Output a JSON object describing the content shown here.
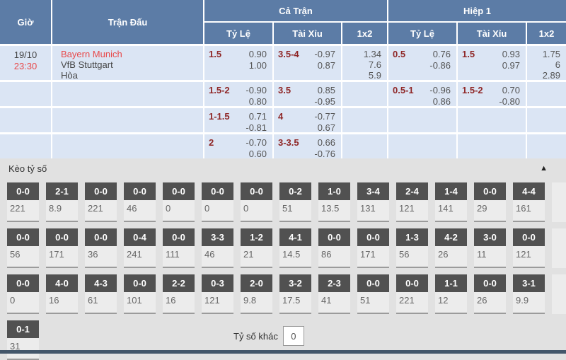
{
  "header": {
    "col_time": "Giờ",
    "col_match": "Trận Đấu",
    "group_full": "Cả Trận",
    "group_half": "Hiệp 1",
    "sub_handicap": "Tỷ Lệ",
    "sub_overunder": "Tài Xỉu",
    "sub_1x2": "1x2"
  },
  "match": {
    "date": "19/10",
    "time": "23:30",
    "home": "Bayern Munich",
    "away": "VfB Stuttgart",
    "draw": "Hòa"
  },
  "odds_rows": [
    {
      "ft_hdp_line": "1.5",
      "ft_hdp_odds": [
        "0.90",
        "1.00"
      ],
      "ft_ou_line": "3.5-4",
      "ft_ou_odds": [
        "-0.97",
        "0.87"
      ],
      "ft_1x2": [
        "1.34",
        "7.6",
        "5.9"
      ],
      "h1_hdp_line": "0.5",
      "h1_hdp_odds": [
        "0.76",
        "-0.86"
      ],
      "h1_ou_line": "1.5",
      "h1_ou_odds": [
        "0.93",
        "0.97"
      ],
      "h1_1x2": [
        "1.75",
        "6",
        "2.89"
      ]
    },
    {
      "ft_hdp_line": "1.5-2",
      "ft_hdp_odds": [
        "-0.90",
        "0.80"
      ],
      "ft_ou_line": "3.5",
      "ft_ou_odds": [
        "0.85",
        "-0.95"
      ],
      "ft_1x2": [],
      "h1_hdp_line": "0.5-1",
      "h1_hdp_odds": [
        "-0.96",
        "0.86"
      ],
      "h1_ou_line": "1.5-2",
      "h1_ou_odds": [
        "0.70",
        "-0.80"
      ],
      "h1_1x2": []
    },
    {
      "ft_hdp_line": "1-1.5",
      "ft_hdp_odds": [
        "0.71",
        "-0.81"
      ],
      "ft_ou_line": "4",
      "ft_ou_odds": [
        "-0.77",
        "0.67"
      ],
      "ft_1x2": [],
      "h1_hdp_line": "",
      "h1_hdp_odds": [],
      "h1_ou_line": "",
      "h1_ou_odds": [],
      "h1_1x2": []
    },
    {
      "ft_hdp_line": "2",
      "ft_hdp_odds": [
        "-0.70",
        "0.60"
      ],
      "ft_ou_line": "3-3.5",
      "ft_ou_odds": [
        "0.66",
        "-0.76"
      ],
      "ft_1x2": [],
      "h1_hdp_line": "",
      "h1_hdp_odds": [],
      "h1_ou_line": "",
      "h1_ou_odds": [],
      "h1_1x2": []
    }
  ],
  "score_section": {
    "title": "Kèo tỷ số",
    "collapse_glyph": "▲",
    "other_label": "Tỷ số khác",
    "other_value": "0",
    "rows": [
      [
        {
          "score": "0-0",
          "odds": "221"
        },
        {
          "score": "2-1",
          "odds": "8.9"
        },
        {
          "score": "0-0",
          "odds": "221"
        },
        {
          "score": "0-0",
          "odds": "46"
        },
        {
          "score": "0-0",
          "odds": "0"
        },
        {
          "score": "0-0",
          "odds": "0"
        },
        {
          "score": "0-0",
          "odds": "0"
        },
        {
          "score": "0-2",
          "odds": "51"
        },
        {
          "score": "1-0",
          "odds": "13.5"
        },
        {
          "score": "3-4",
          "odds": "131"
        },
        {
          "score": "2-4",
          "odds": "121"
        },
        {
          "score": "1-4",
          "odds": "141"
        },
        {
          "score": "0-0",
          "odds": "29"
        },
        {
          "score": "4-4",
          "odds": "161"
        }
      ],
      [
        {
          "score": "0-0",
          "odds": "56"
        },
        {
          "score": "0-0",
          "odds": "171"
        },
        {
          "score": "0-0",
          "odds": "36"
        },
        {
          "score": "0-4",
          "odds": "241"
        },
        {
          "score": "0-0",
          "odds": "111"
        },
        {
          "score": "3-3",
          "odds": "46"
        },
        {
          "score": "1-2",
          "odds": "21"
        },
        {
          "score": "4-1",
          "odds": "14.5"
        },
        {
          "score": "0-0",
          "odds": "86"
        },
        {
          "score": "0-0",
          "odds": "171"
        },
        {
          "score": "1-3",
          "odds": "56"
        },
        {
          "score": "4-2",
          "odds": "26"
        },
        {
          "score": "3-0",
          "odds": "11"
        },
        {
          "score": "0-0",
          "odds": "121"
        }
      ],
      [
        {
          "score": "0-0",
          "odds": "0"
        },
        {
          "score": "4-0",
          "odds": "16"
        },
        {
          "score": "4-3",
          "odds": "61"
        },
        {
          "score": "0-0",
          "odds": "101"
        },
        {
          "score": "2-2",
          "odds": "16"
        },
        {
          "score": "0-3",
          "odds": "121"
        },
        {
          "score": "2-0",
          "odds": "9.8"
        },
        {
          "score": "3-2",
          "odds": "17.5"
        },
        {
          "score": "2-3",
          "odds": "41"
        },
        {
          "score": "0-0",
          "odds": "51"
        },
        {
          "score": "0-0",
          "odds": "221"
        },
        {
          "score": "1-1",
          "odds": "12"
        },
        {
          "score": "0-0",
          "odds": "26"
        },
        {
          "score": "3-1",
          "odds": "9.9"
        }
      ],
      [
        {
          "score": "0-1",
          "odds": "31"
        }
      ]
    ]
  },
  "colors": {
    "header_blue": "#5c7ca6",
    "row_blue": "#dbe5f4",
    "accent_red": "#e8494a",
    "handicap_maroon": "#8f2727",
    "chip_gray": "#515151",
    "section_gray": "#e1e1e1",
    "bottom_bar": "#43566a"
  }
}
